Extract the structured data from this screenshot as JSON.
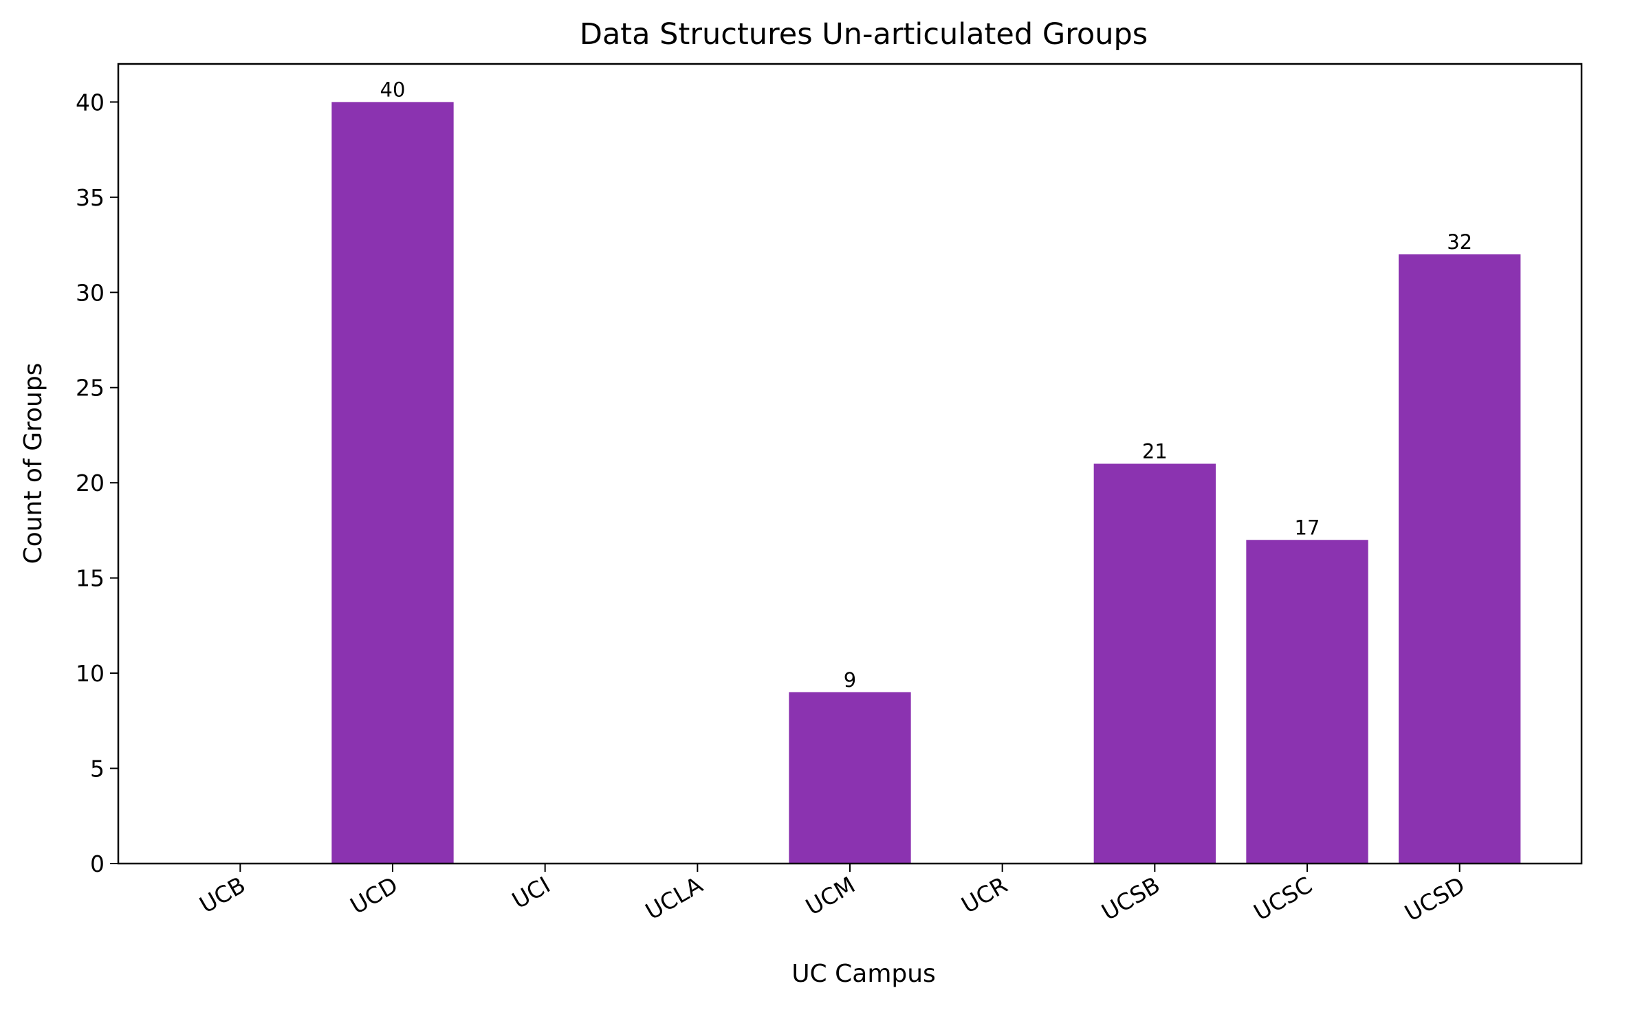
{
  "chart_data": {
    "type": "bar",
    "title": "Data Structures  Un-articulated Groups",
    "xlabel": "UC Campus",
    "ylabel": "Count of Groups",
    "categories": [
      "UCB",
      "UCD",
      "UCI",
      "UCLA",
      "UCM",
      "UCR",
      "UCSB",
      "UCSC",
      "UCSD"
    ],
    "values": [
      0,
      40,
      0,
      0,
      9,
      0,
      21,
      17,
      32
    ],
    "data_labels": [
      "",
      "40",
      "",
      "",
      "9",
      "",
      "21",
      "17",
      "32"
    ],
    "yticks": [
      0,
      5,
      10,
      15,
      20,
      25,
      30,
      35,
      40
    ],
    "ylim": [
      0,
      42
    ],
    "bar_color": "#8b33b0",
    "grid": false,
    "legend": "none"
  }
}
